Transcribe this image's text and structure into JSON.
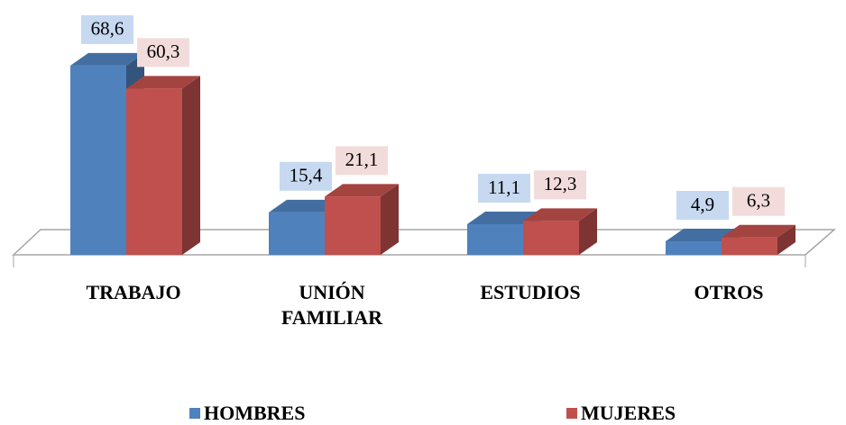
{
  "chart_data": {
    "type": "bar3d",
    "categories": [
      "TRABAJO",
      "UNIÓN FAMILIAR",
      "ESTUDIOS",
      "OTROS"
    ],
    "series": [
      {
        "name": "HOMBRES",
        "color": "#4f81bd",
        "label_bg": "#c6d9f1",
        "values": [
          68.6,
          15.4,
          11.1,
          4.9
        ],
        "value_labels": [
          "68,6",
          "15,4",
          "11,1",
          "4,9"
        ]
      },
      {
        "name": "MUJERES",
        "color": "#c0504d",
        "label_bg": "#f2dcdb",
        "values": [
          60.3,
          21.1,
          12.3,
          6.3
        ],
        "value_labels": [
          "60,3",
          "21,1",
          "12,3",
          "6,3"
        ]
      }
    ],
    "ylim": [
      0,
      80
    ]
  }
}
